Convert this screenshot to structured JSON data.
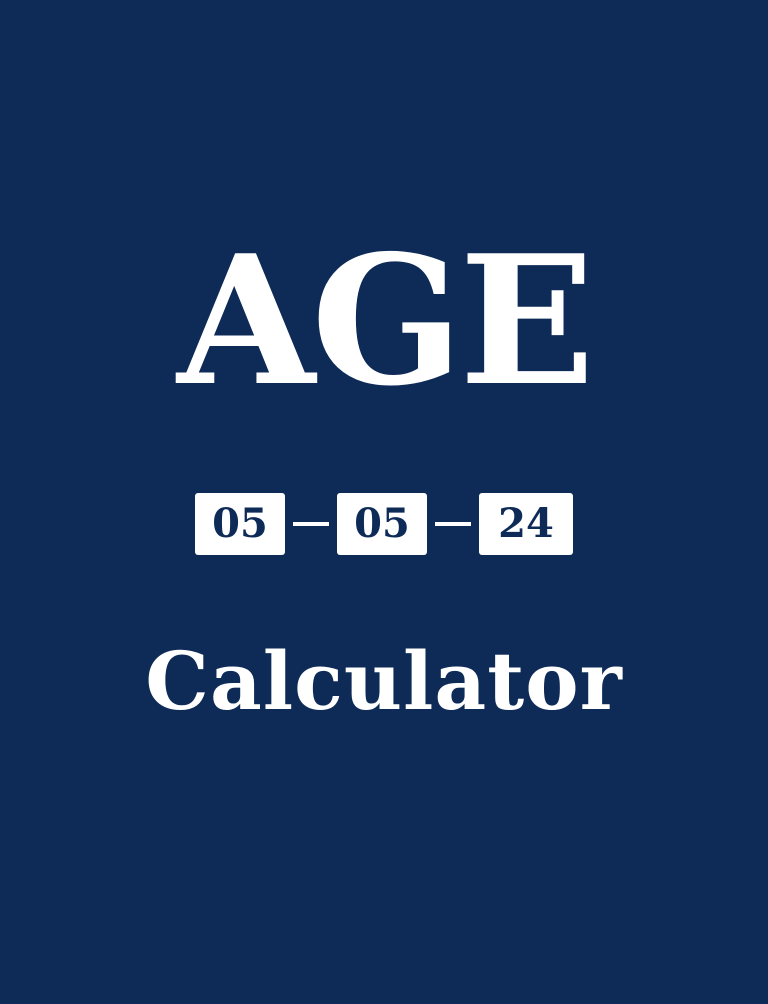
{
  "screen": {
    "background_color": "#0e2b58",
    "text_color": "#ffffff"
  },
  "title": "AGE",
  "date": {
    "day": "05",
    "month": "05",
    "year": "24"
  },
  "subtitle": "Calculator"
}
